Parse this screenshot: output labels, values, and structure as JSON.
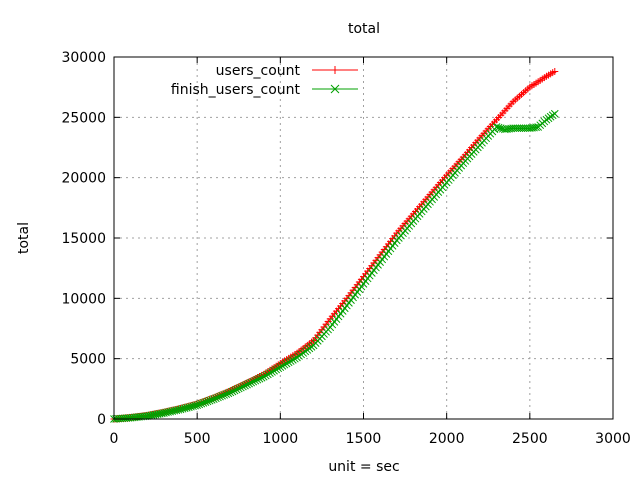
{
  "chart_data": {
    "type": "line",
    "title": "total",
    "xlabel": "unit = sec",
    "ylabel": "total",
    "xlim": [
      0,
      3000
    ],
    "ylim": [
      0,
      30000
    ],
    "x_ticks": [
      0,
      500,
      1000,
      1500,
      2000,
      2500,
      3000
    ],
    "y_ticks": [
      0,
      5000,
      10000,
      15000,
      20000,
      25000,
      30000
    ],
    "grid": true,
    "legend_position": "top-left",
    "series": [
      {
        "name": "users_count",
        "color": "#ff0000",
        "marker": "+",
        "points": [
          [
            0,
            0
          ],
          [
            100,
            120
          ],
          [
            200,
            300
          ],
          [
            300,
            560
          ],
          [
            400,
            880
          ],
          [
            500,
            1250
          ],
          [
            600,
            1760
          ],
          [
            700,
            2350
          ],
          [
            800,
            3000
          ],
          [
            900,
            3700
          ],
          [
            1000,
            4600
          ],
          [
            1100,
            5450
          ],
          [
            1200,
            6500
          ],
          [
            1300,
            8300
          ],
          [
            1400,
            10000
          ],
          [
            1500,
            11800
          ],
          [
            1600,
            13600
          ],
          [
            1700,
            15400
          ],
          [
            1800,
            17000
          ],
          [
            1900,
            18600
          ],
          [
            2000,
            20200
          ],
          [
            2100,
            21700
          ],
          [
            2200,
            23300
          ],
          [
            2300,
            24800
          ],
          [
            2400,
            26300
          ],
          [
            2500,
            27500
          ],
          [
            2600,
            28400
          ],
          [
            2650,
            28800
          ]
        ]
      },
      {
        "name": "finish_users_count",
        "color": "#00a000",
        "marker": "x",
        "points": [
          [
            0,
            0
          ],
          [
            100,
            100
          ],
          [
            200,
            250
          ],
          [
            300,
            500
          ],
          [
            400,
            800
          ],
          [
            500,
            1150
          ],
          [
            600,
            1650
          ],
          [
            700,
            2200
          ],
          [
            800,
            2850
          ],
          [
            900,
            3500
          ],
          [
            1000,
            4300
          ],
          [
            1100,
            5100
          ],
          [
            1200,
            6100
          ],
          [
            1300,
            7600
          ],
          [
            1400,
            9400
          ],
          [
            1500,
            11200
          ],
          [
            1600,
            13000
          ],
          [
            1700,
            14800
          ],
          [
            1800,
            16400
          ],
          [
            1900,
            18000
          ],
          [
            2000,
            19600
          ],
          [
            2100,
            21200
          ],
          [
            2200,
            22700
          ],
          [
            2300,
            24200
          ],
          [
            2350,
            24000
          ],
          [
            2400,
            24100
          ],
          [
            2450,
            24100
          ],
          [
            2500,
            24100
          ],
          [
            2550,
            24200
          ],
          [
            2600,
            24800
          ],
          [
            2650,
            25300
          ]
        ]
      }
    ]
  }
}
